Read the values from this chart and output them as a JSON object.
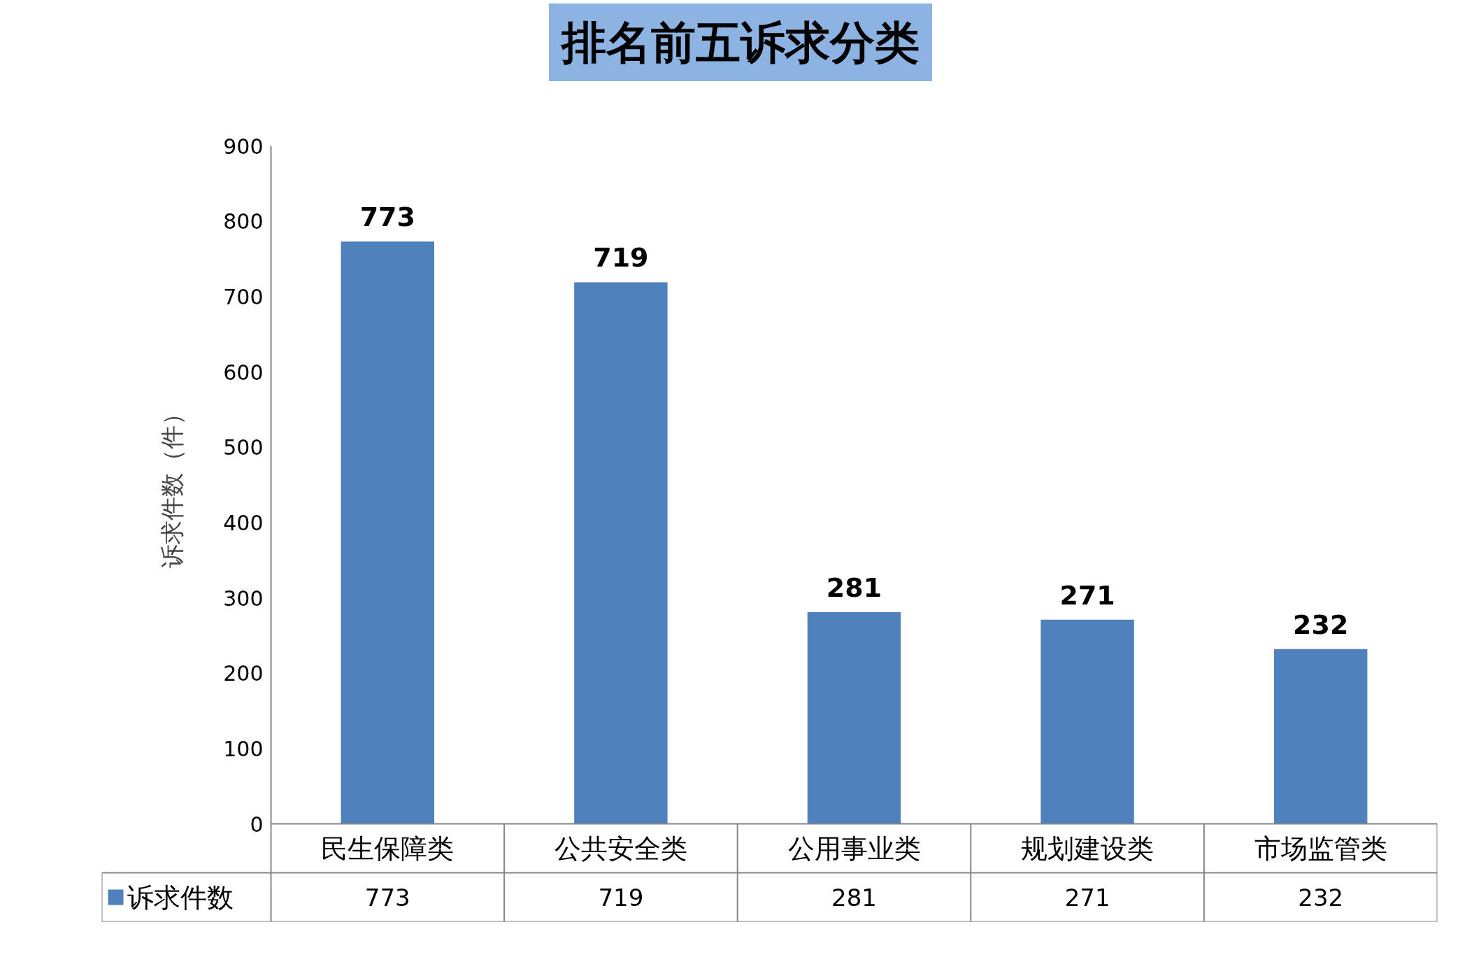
{
  "chart_data": {
    "type": "bar",
    "title": "排名前五诉求分类",
    "ylabel": "诉求件数（件）",
    "categories": [
      "民生保障类",
      "公共安全类",
      "公用事业类",
      "规划建设类",
      "市场监管类"
    ],
    "series": [
      {
        "name": "诉求件数",
        "color": "#4f81bd",
        "values": [
          773,
          719,
          281,
          271,
          232
        ],
        "value_labels": [
          "773",
          "719",
          "281",
          "271",
          "232"
        ]
      }
    ],
    "ylim": [
      0,
      900
    ],
    "yticks": [
      0,
      100,
      200,
      300,
      400,
      500,
      600,
      700,
      800,
      900
    ],
    "annotations": [
      "773",
      "719",
      "281",
      "271",
      "232"
    ],
    "grid": false,
    "legend": "bottom"
  }
}
